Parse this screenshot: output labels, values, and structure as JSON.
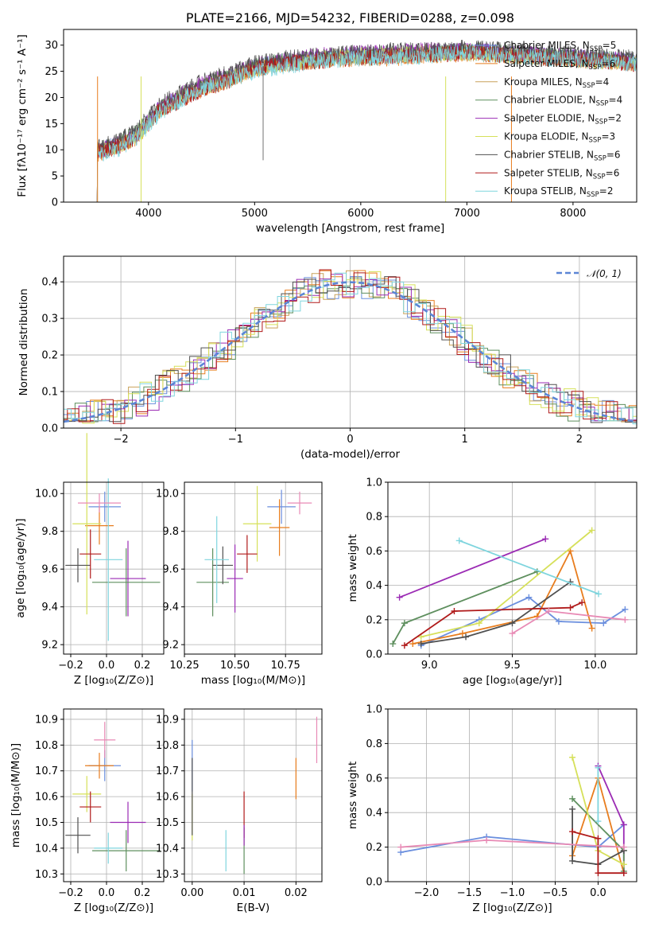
{
  "colors": [
    "#6b8fde",
    "#e87d1e",
    "#c9a25a",
    "#5e8f5e",
    "#9b2bb4",
    "#d6e05a",
    "#505050",
    "#b01a1a",
    "#7fd5de",
    "#e88ab5"
  ],
  "chart_data": [
    {
      "id": "spectrum",
      "type": "line",
      "title": "PLATE=2166, MJD=54232, FIBERID=0288, z=0.098",
      "xlabel": "wavelength [Angstrom, rest frame]",
      "ylabel": "Flux [fλ10⁻¹⁷ erg cm⁻² s⁻¹ A⁻¹]",
      "xlim": [
        3200,
        8600
      ],
      "ylim": [
        0,
        33
      ],
      "xticks": [
        "4000",
        "5000",
        "6000",
        "7000",
        "8000"
      ],
      "xtick_values": [
        4000,
        5000,
        6000,
        7000,
        8000
      ],
      "yticks": [
        "0",
        "5",
        "10",
        "15",
        "20",
        "25",
        "30"
      ],
      "ytick_values": [
        0,
        5,
        10,
        15,
        20,
        25,
        30
      ],
      "grid": false,
      "legend_position": "top-right",
      "x": [
        3500,
        3700,
        3900,
        4100,
        4300,
        4500,
        4800,
        5000,
        5300,
        5600,
        6000,
        6300,
        6600,
        7000,
        7400,
        7800,
        8200,
        8600
      ],
      "series": [
        {
          "name": "Chabrier MILES, N_SSP=5",
          "values": [
            10,
            11,
            13,
            18,
            20,
            22,
            24,
            26,
            27,
            27.5,
            28,
            28,
            28.5,
            29,
            28.5,
            28,
            27.5,
            27
          ]
        },
        {
          "name": "Salpeter MILES, N_SSP=6",
          "values": [
            9,
            10.5,
            12.5,
            17.5,
            19.5,
            21.5,
            23.5,
            25.5,
            26.5,
            27,
            27.5,
            27.5,
            28,
            28.5,
            28,
            27.5,
            27,
            26.5
          ]
        },
        {
          "name": "Kroupa MILES, N_SSP=4",
          "values": [
            9.5,
            10.5,
            13,
            17.5,
            20,
            22,
            23.5,
            25.5,
            26.5,
            27,
            27.5,
            28,
            28,
            28.5,
            28,
            27.5,
            27,
            26.5
          ]
        },
        {
          "name": "Chabrier ELODIE, N_SSP=4",
          "values": [
            10,
            11,
            13.5,
            18,
            20,
            22,
            24,
            26,
            27,
            27.5,
            28,
            28.5,
            28.5,
            29,
            28.5,
            28,
            27.5,
            27
          ]
        },
        {
          "name": "Salpeter ELODIE, N_SSP=2",
          "values": [
            9.5,
            11,
            13,
            18,
            20.5,
            22.5,
            24.5,
            26,
            27,
            28,
            28.5,
            28.5,
            29,
            29,
            28.5,
            28,
            27.5,
            27
          ]
        },
        {
          "name": "Kroupa ELODIE, N_SSP=3",
          "values": [
            9.5,
            10.5,
            12.5,
            17.5,
            20,
            22,
            24,
            25.5,
            26.5,
            27.5,
            28,
            28,
            28.5,
            28.5,
            28,
            27.5,
            27,
            26.5
          ]
        },
        {
          "name": "Chabrier STELIB, N_SSP=6",
          "values": [
            10.5,
            11.5,
            14,
            18.5,
            21,
            23,
            25,
            26.5,
            27.5,
            28,
            28.5,
            29,
            29,
            29.5,
            29,
            28.5,
            28,
            27.5
          ]
        },
        {
          "name": "Salpeter STELIB, N_SSP=6",
          "values": [
            9.5,
            10.5,
            12.5,
            17.5,
            19.5,
            21.5,
            23.5,
            25.5,
            26.5,
            27,
            27.5,
            28,
            28,
            28.5,
            28,
            27.5,
            27,
            26.5
          ]
        },
        {
          "name": "Kroupa STELIB, N_SSP=2",
          "values": [
            9,
            10,
            12.5,
            17,
            19.5,
            21.5,
            23.5,
            25,
            26,
            27,
            27.5,
            27.5,
            28,
            28.5,
            28,
            27.5,
            27,
            26.5
          ]
        }
      ],
      "legend_entries": [
        {
          "prefix": "Chabrier MILES, N",
          "sub": "SSP",
          "suffix": "=5"
        },
        {
          "prefix": "Salpeter MILES, N",
          "sub": "SSP",
          "suffix": "=6"
        },
        {
          "prefix": "Kroupa MILES, N",
          "sub": "SSP",
          "suffix": "=4"
        },
        {
          "prefix": "Chabrier ELODIE, N",
          "sub": "SSP",
          "suffix": "=4"
        },
        {
          "prefix": "Salpeter ELODIE, N",
          "sub": "SSP",
          "suffix": "=2"
        },
        {
          "prefix": "Kroupa ELODIE, N",
          "sub": "SSP",
          "suffix": "=3"
        },
        {
          "prefix": "Chabrier STELIB, N",
          "sub": "SSP",
          "suffix": "=6"
        },
        {
          "prefix": "Salpeter STELIB, N",
          "sub": "SSP",
          "suffix": "=6"
        },
        {
          "prefix": "Kroupa STELIB, N",
          "sub": "SSP",
          "suffix": "=2"
        }
      ]
    },
    {
      "id": "residuals",
      "type": "line",
      "title": "",
      "xlabel": "(data-model)/error",
      "ylabel": "Normed distribution",
      "xlim": [
        -2.5,
        2.5
      ],
      "ylim": [
        0,
        0.47
      ],
      "xticks": [
        "−2",
        "−1",
        "0",
        "1",
        "2"
      ],
      "xtick_values": [
        -2,
        -1,
        0,
        1,
        2
      ],
      "yticks": [
        "0.0",
        "0.1",
        "0.2",
        "0.3",
        "0.4"
      ],
      "ytick_values": [
        0,
        0.1,
        0.2,
        0.3,
        0.4
      ],
      "grid": true,
      "legend_position": "top-right",
      "legend_label": "𝒩(0, 1)",
      "reference_curve": "normal(0,1)"
    },
    {
      "id": "age-vs-Z",
      "type": "scatter",
      "xlabel": "Z [log₁₀(Z/Z⊙)]",
      "ylabel": "age  [log₁₀(age/yr)]",
      "xlim": [
        -0.24,
        0.32
      ],
      "ylim": [
        9.15,
        10.06
      ],
      "xticks": [
        "−0.2",
        "0.0",
        "0.2"
      ],
      "xtick_values": [
        -0.2,
        0,
        0.2
      ],
      "yticks": [
        "9.2",
        "9.4",
        "9.6",
        "9.8",
        "10.0"
      ],
      "ytick_values": [
        9.2,
        9.4,
        9.6,
        9.8,
        10.0
      ],
      "grid": true,
      "points": [
        {
          "x": -0.01,
          "y": 9.93,
          "xerr": 0.09,
          "yerr": 0.08,
          "c": 0
        },
        {
          "x": -0.04,
          "y": 9.83,
          "xerr": 0.08,
          "yerr": 0.1,
          "c": 1
        },
        {
          "x": 0.12,
          "y": 9.55,
          "xerr": 0.1,
          "yerr": 0.2,
          "c": 4
        },
        {
          "x": 0.11,
          "y": 9.53,
          "xerr": 0.19,
          "yerr": 0.18,
          "c": 3
        },
        {
          "x": -0.11,
          "y": 9.84,
          "xerr": 0.08,
          "yerr": 0.48,
          "c": 5
        },
        {
          "x": -0.16,
          "y": 9.62,
          "xerr": 0.07,
          "yerr": 0.09,
          "c": 6
        },
        {
          "x": -0.09,
          "y": 9.68,
          "xerr": 0.06,
          "yerr": 0.13,
          "c": 7
        },
        {
          "x": 0.01,
          "y": 9.65,
          "xerr": 0.08,
          "yerr": 0.43,
          "c": 8
        },
        {
          "x": -0.04,
          "y": 9.95,
          "xerr": 0.12,
          "yerr": 0.05,
          "c": 9
        }
      ]
    },
    {
      "id": "age-vs-mass",
      "type": "scatter",
      "xlabel": "mass [log₁₀(M/M⊙)]",
      "ylabel": "",
      "xlim": [
        10.25,
        10.93
      ],
      "ylim": [
        9.15,
        10.06
      ],
      "xticks": [
        "10.25",
        "10.50",
        "10.75"
      ],
      "xtick_values": [
        10.25,
        10.5,
        10.75
      ],
      "yticks": [
        "9.2",
        "9.4",
        "9.6",
        "9.8",
        "10.0"
      ],
      "ytick_values": [
        9.2,
        9.4,
        9.6,
        9.8,
        10.0
      ],
      "grid": true,
      "points": [
        {
          "x": 10.73,
          "y": 9.93,
          "xerr": 0.07,
          "yerr": 0.09,
          "c": 0
        },
        {
          "x": 10.72,
          "y": 9.82,
          "xerr": 0.05,
          "yerr": 0.15,
          "c": 1
        },
        {
          "x": 10.5,
          "y": 9.55,
          "xerr": 0.04,
          "yerr": 0.18,
          "c": 4
        },
        {
          "x": 10.39,
          "y": 9.53,
          "xerr": 0.08,
          "yerr": 0.18,
          "c": 3
        },
        {
          "x": 10.61,
          "y": 9.84,
          "xerr": 0.07,
          "yerr": 0.2,
          "c": 5
        },
        {
          "x": 10.44,
          "y": 9.62,
          "xerr": 0.05,
          "yerr": 0.1,
          "c": 6
        },
        {
          "x": 10.56,
          "y": 9.68,
          "xerr": 0.05,
          "yerr": 0.1,
          "c": 7
        },
        {
          "x": 10.41,
          "y": 9.65,
          "xerr": 0.06,
          "yerr": 0.23,
          "c": 8
        },
        {
          "x": 10.82,
          "y": 9.95,
          "xerr": 0.06,
          "yerr": 0.06,
          "c": 9
        }
      ]
    },
    {
      "id": "massweight-vs-age",
      "type": "line",
      "xlabel": "age  [log₁₀(age/yr)]",
      "ylabel": "mass weight",
      "xlim": [
        8.75,
        10.25
      ],
      "ylim": [
        0,
        1
      ],
      "xticks": [
        "9.0",
        "9.5",
        "10.0"
      ],
      "xtick_values": [
        9.0,
        9.5,
        10.0
      ],
      "yticks": [
        "0.0",
        "0.2",
        "0.4",
        "0.6",
        "0.8",
        "1.0"
      ],
      "ytick_values": [
        0,
        0.2,
        0.4,
        0.6,
        0.8,
        1.0
      ],
      "grid": true,
      "series": [
        {
          "c": 0,
          "x": [
            8.95,
            9.3,
            9.6,
            9.78,
            10.05,
            10.18
          ],
          "y": [
            0.05,
            0.2,
            0.33,
            0.19,
            0.18,
            0.26
          ]
        },
        {
          "c": 1,
          "x": [
            8.9,
            9.2,
            9.65,
            9.85,
            9.98
          ],
          "y": [
            0.06,
            0.12,
            0.22,
            0.6,
            0.15
          ]
        },
        {
          "c": 4,
          "x": [
            8.82,
            9.7
          ],
          "y": [
            0.33,
            0.67
          ]
        },
        {
          "c": 3,
          "x": [
            8.78,
            8.85,
            9.65
          ],
          "y": [
            0.06,
            0.18,
            0.48
          ]
        },
        {
          "c": 5,
          "x": [
            8.95,
            9.3,
            9.98
          ],
          "y": [
            0.1,
            0.18,
            0.72
          ]
        },
        {
          "c": 6,
          "x": [
            8.95,
            9.22,
            9.5,
            9.85
          ],
          "y": [
            0.06,
            0.1,
            0.18,
            0.42
          ]
        },
        {
          "c": 7,
          "x": [
            8.85,
            9.15,
            9.85,
            9.92
          ],
          "y": [
            0.05,
            0.25,
            0.27,
            0.3
          ]
        },
        {
          "c": 8,
          "x": [
            9.18,
            10.02
          ],
          "y": [
            0.66,
            0.35
          ]
        },
        {
          "c": 9,
          "x": [
            9.5,
            9.72,
            10.18
          ],
          "y": [
            0.12,
            0.25,
            0.2
          ]
        }
      ]
    },
    {
      "id": "mass-vs-Z",
      "type": "scatter",
      "xlabel": "Z [log₁₀(Z/Z⊙)]",
      "ylabel": "mass [log₁₀(M/M⊙)]",
      "xlim": [
        -0.24,
        0.32
      ],
      "ylim": [
        10.27,
        10.94
      ],
      "xticks": [
        "−0.2",
        "0.0",
        "0.2"
      ],
      "xtick_values": [
        -0.2,
        0,
        0.2
      ],
      "yticks": [
        "10.3",
        "10.4",
        "10.5",
        "10.6",
        "10.7",
        "10.8",
        "10.9"
      ],
      "ytick_values": [
        10.3,
        10.4,
        10.5,
        10.6,
        10.7,
        10.8,
        10.9
      ],
      "grid": true,
      "points": [
        {
          "x": -0.01,
          "y": 10.72,
          "xerr": 0.09,
          "yerr": 0.06,
          "c": 0
        },
        {
          "x": -0.04,
          "y": 10.72,
          "xerr": 0.08,
          "yerr": 0.05,
          "c": 1
        },
        {
          "x": 0.12,
          "y": 10.5,
          "xerr": 0.1,
          "yerr": 0.08,
          "c": 4
        },
        {
          "x": 0.11,
          "y": 10.39,
          "xerr": 0.19,
          "yerr": 0.08,
          "c": 3
        },
        {
          "x": -0.11,
          "y": 10.61,
          "xerr": 0.08,
          "yerr": 0.07,
          "c": 5
        },
        {
          "x": -0.16,
          "y": 10.45,
          "xerr": 0.07,
          "yerr": 0.07,
          "c": 6
        },
        {
          "x": -0.09,
          "y": 10.56,
          "xerr": 0.06,
          "yerr": 0.06,
          "c": 7
        },
        {
          "x": 0.01,
          "y": 10.4,
          "xerr": 0.08,
          "yerr": 0.06,
          "c": 8
        },
        {
          "x": -0.01,
          "y": 10.82,
          "xerr": 0.06,
          "yerr": 0.07,
          "c": 9
        }
      ]
    },
    {
      "id": "mass-vs-ebv",
      "type": "scatter",
      "xlabel": "E(B-V)",
      "ylabel": "",
      "xlim": [
        -0.0015,
        0.025
      ],
      "ylim": [
        10.27,
        10.94
      ],
      "xticks": [
        "0.00",
        "0.01",
        "0.02"
      ],
      "xtick_values": [
        0,
        0.01,
        0.02
      ],
      "yticks": [
        "10.3",
        "10.4",
        "10.5",
        "10.6",
        "10.7",
        "10.8",
        "10.9"
      ],
      "ytick_values": [
        10.3,
        10.4,
        10.5,
        10.6,
        10.7,
        10.8,
        10.9
      ],
      "grid": true,
      "points": [
        {
          "x": 0.0,
          "y": 10.72,
          "xerr": 0,
          "yerr": 0.1,
          "c": 0
        },
        {
          "x": 0.02,
          "y": 10.67,
          "xerr": 0,
          "yerr": 0.08,
          "c": 1
        },
        {
          "x": 0.0,
          "y": 10.52,
          "xerr": 0,
          "yerr": 0.09,
          "c": 5
        },
        {
          "x": 0.01,
          "y": 10.39,
          "xerr": 0,
          "yerr": 0.09,
          "c": 3
        },
        {
          "x": 0.0,
          "y": 10.6,
          "xerr": 0,
          "yerr": 0.15,
          "c": 6
        },
        {
          "x": 0.01,
          "y": 10.53,
          "xerr": 0,
          "yerr": 0.09,
          "c": 7
        },
        {
          "x": 0.0065,
          "y": 10.39,
          "xerr": 0,
          "yerr": 0.08,
          "c": 8
        },
        {
          "x": 0.024,
          "y": 10.82,
          "xerr": 0,
          "yerr": 0.09,
          "c": 9
        },
        {
          "x": 0.01,
          "y": 10.45,
          "xerr": 0,
          "yerr": 0.04,
          "c": 4
        }
      ]
    },
    {
      "id": "massweight-vs-Z",
      "type": "line",
      "xlabel": "Z [log₁₀(Z/Z⊙)]",
      "ylabel": "mass weight",
      "xlim": [
        -2.45,
        0.45
      ],
      "ylim": [
        0,
        1
      ],
      "xticks": [
        "−2.0",
        "−1.5",
        "−1.0",
        "−0.5",
        "0.0"
      ],
      "xtick_values": [
        -2,
        -1.5,
        -1,
        -0.5,
        0
      ],
      "yticks": [
        "0.0",
        "0.2",
        "0.4",
        "0.6",
        "0.8",
        "1.0"
      ],
      "ytick_values": [
        0,
        0.2,
        0.4,
        0.6,
        0.8,
        1.0
      ],
      "grid": true,
      "series": [
        {
          "c": 0,
          "x": [
            -2.3,
            -1.3,
            0,
            0.3
          ],
          "y": [
            0.17,
            0.26,
            0.2,
            0.33
          ]
        },
        {
          "c": 1,
          "x": [
            -0.3,
            0,
            0.3
          ],
          "y": [
            0.15,
            0.6,
            0.05
          ]
        },
        {
          "c": 4,
          "x": [
            0,
            0.3,
            0.3
          ],
          "y": [
            0.67,
            0.33,
            0.05
          ]
        },
        {
          "c": 3,
          "x": [
            -0.3,
            0.3,
            0.3
          ],
          "y": [
            0.48,
            0.18,
            0.06
          ]
        },
        {
          "c": 5,
          "x": [
            -0.3,
            0,
            0.3
          ],
          "y": [
            0.72,
            0.18,
            0.1
          ]
        },
        {
          "c": 6,
          "x": [
            -0.3,
            -0.3,
            0,
            0.3
          ],
          "y": [
            0.42,
            0.12,
            0.1,
            0.18
          ]
        },
        {
          "c": 7,
          "x": [
            -0.3,
            0,
            0,
            0.3
          ],
          "y": [
            0.29,
            0.25,
            0.05,
            0.05
          ]
        },
        {
          "c": 8,
          "x": [
            0,
            0
          ],
          "y": [
            0.66,
            0.35
          ]
        },
        {
          "c": 9,
          "x": [
            -2.3,
            -1.3,
            0.3
          ],
          "y": [
            0.2,
            0.24,
            0.2
          ]
        }
      ]
    }
  ]
}
